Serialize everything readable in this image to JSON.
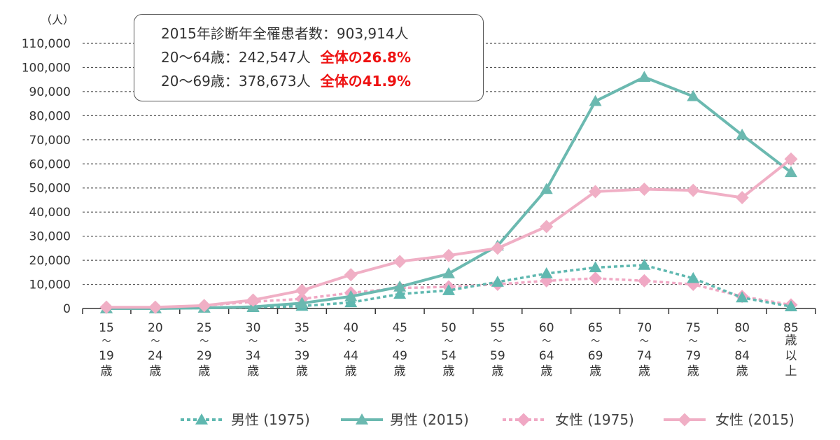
{
  "chart_data": {
    "type": "line",
    "unit_label": "（人）",
    "categories": [
      [
        "15",
        "〜",
        "19",
        "歳"
      ],
      [
        "20",
        "〜",
        "24",
        "歳"
      ],
      [
        "25",
        "〜",
        "29",
        "歳"
      ],
      [
        "30",
        "〜",
        "34",
        "歳"
      ],
      [
        "35",
        "〜",
        "39",
        "歳"
      ],
      [
        "40",
        "〜",
        "44",
        "歳"
      ],
      [
        "45",
        "〜",
        "49",
        "歳"
      ],
      [
        "50",
        "〜",
        "54",
        "歳"
      ],
      [
        "55",
        "〜",
        "59",
        "歳"
      ],
      [
        "60",
        "〜",
        "64",
        "歳"
      ],
      [
        "65",
        "〜",
        "69",
        "歳"
      ],
      [
        "70",
        "〜",
        "74",
        "歳"
      ],
      [
        "75",
        "〜",
        "79",
        "歳"
      ],
      [
        "80",
        "〜",
        "84",
        "歳"
      ],
      [
        "85",
        "歳",
        "以",
        "上"
      ]
    ],
    "y_ticks": [
      "0",
      "10,000",
      "20,000",
      "30,000",
      "40,000",
      "50,000",
      "60,000",
      "70,000",
      "80,000",
      "90,000",
      "100,000",
      "110,000"
    ],
    "ylim": [
      0,
      110000
    ],
    "y_step": 10000,
    "grid": true,
    "series": [
      {
        "name": "男性 (1975)",
        "color": "#5fb8b0",
        "marker": "triangle",
        "dashed": true,
        "values": [
          0,
          0,
          200,
          500,
          1000,
          2500,
          6000,
          7500,
          11000,
          14500,
          17000,
          18000,
          12500,
          4500,
          800
        ]
      },
      {
        "name": "男性 (2015)",
        "color": "#6bb9b0",
        "marker": "triangle",
        "dashed": false,
        "values": [
          0,
          0,
          200,
          700,
          2200,
          5000,
          9000,
          14500,
          26000,
          49500,
          86000,
          96000,
          88000,
          72000,
          56500
        ]
      },
      {
        "name": "女性 (1975)",
        "color": "#f0a8c4",
        "marker": "diamond",
        "dashed": true,
        "values": [
          500,
          500,
          1200,
          2800,
          4000,
          6500,
          8500,
          9000,
          10000,
          11500,
          12500,
          11500,
          10000,
          5000,
          1500
        ]
      },
      {
        "name": "女性 (2015)",
        "color": "#f0afc5",
        "marker": "diamond",
        "dashed": false,
        "values": [
          500,
          500,
          1200,
          3500,
          7500,
          14000,
          19500,
          22000,
          25000,
          34000,
          48500,
          49500,
          49000,
          46000,
          62000
        ]
      }
    ],
    "annotation": {
      "line1": "2015年診断年全罹患者数：903,914人",
      "line2_text": "20〜64歳：242,547人",
      "line2_pct": "全体の26.8%",
      "line3_text": "20〜69歳：378,673人",
      "line3_pct": "全体の41.9%"
    },
    "legend_position": "bottom-right"
  }
}
